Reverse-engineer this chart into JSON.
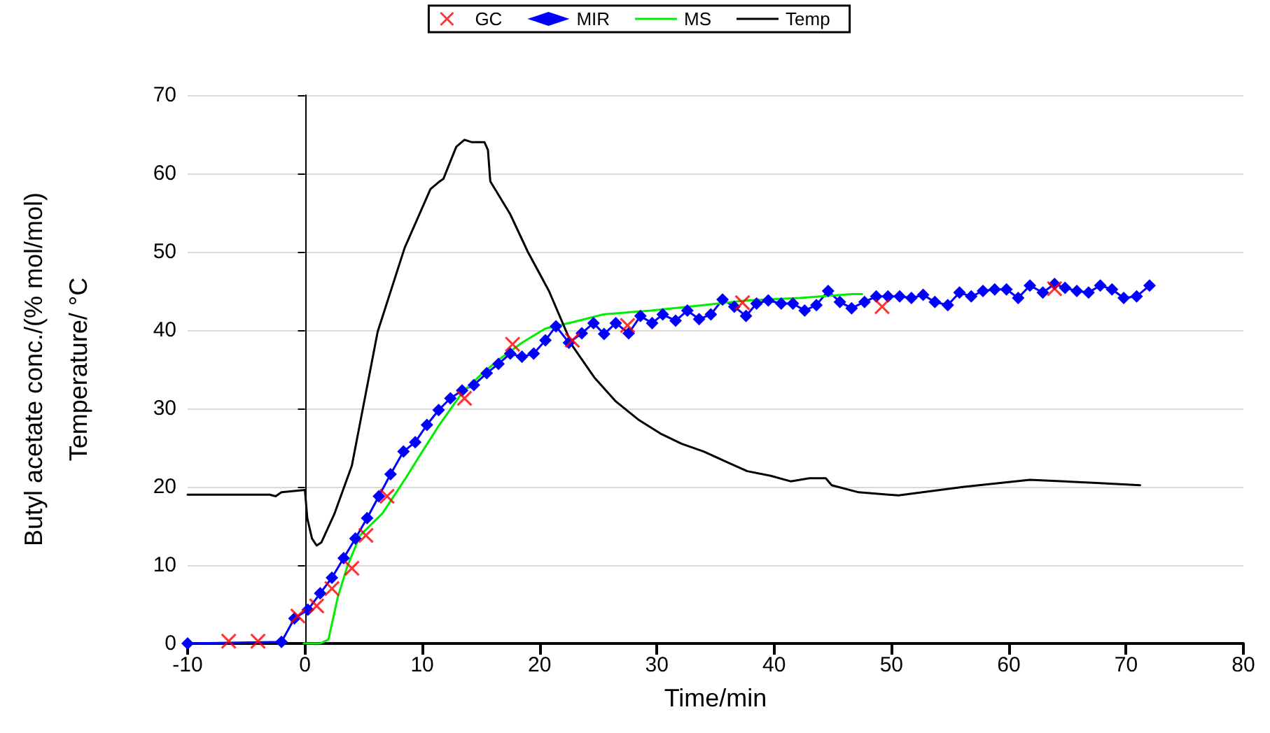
{
  "chart_data": {
    "type": "line",
    "xlabel": "Time/min",
    "ylabel": "Butyl acetate conc./(% mol/mol)\nTemperature/ °C",
    "xlim": [
      -10,
      80
    ],
    "xticks": [
      -10,
      0,
      10,
      20,
      30,
      40,
      50,
      60,
      70,
      80
    ],
    "ylim": [
      0,
      70
    ],
    "yticks": [
      0,
      10,
      20,
      30,
      40,
      50,
      60,
      70
    ],
    "grid": "y",
    "legend": "top",
    "series": [
      {
        "name": "GC",
        "type": "scatter",
        "marker": "cross",
        "color": "#ff0000",
        "x": [
          -6.5,
          -4,
          -0.6,
          1,
          2.3,
          4,
          5.2,
          7,
          13.6,
          17.7,
          22.8,
          27.5,
          37.3,
          49.2,
          63.9
        ],
        "values": [
          0.3,
          0.3,
          3.5,
          4.8,
          7,
          9.6,
          13.8,
          18.8,
          31.3,
          38.2,
          38.7,
          40.6,
          43.5,
          43,
          45.3
        ]
      },
      {
        "name": "MIR",
        "type": "line",
        "marker": "diamond",
        "color": "#0000ff",
        "x": [
          -10,
          -2,
          -0.9,
          0.25,
          1.3,
          2.3,
          3.3,
          4.3,
          5.3,
          6.3,
          7.3,
          8.4,
          9.4,
          10.4,
          11.4,
          12.4,
          13.4,
          14.4,
          15.5,
          16.5,
          17.5,
          18.5,
          19.5,
          20.5,
          21.4,
          22.5,
          23.6,
          24.6,
          25.5,
          26.5,
          27.6,
          28.6,
          29.6,
          30.5,
          31.6,
          32.6,
          33.6,
          34.6,
          35.6,
          36.6,
          37.6,
          38.5,
          39.5,
          40.6,
          41.6,
          42.6,
          43.6,
          44.6,
          45.6,
          46.6,
          47.7,
          48.7,
          49.7,
          50.7,
          51.7,
          52.7,
          53.7,
          54.8,
          55.8,
          56.8,
          57.8,
          58.8,
          59.8,
          60.8,
          61.8,
          62.9,
          63.9,
          64.8,
          65.8,
          66.8,
          67.8,
          68.8,
          69.8,
          70.9,
          72
        ],
        "values": [
          0,
          0.2,
          3.2,
          4.3,
          6.4,
          8.4,
          10.9,
          13.4,
          16,
          18.8,
          21.6,
          24.5,
          25.7,
          27.9,
          29.8,
          31.3,
          32.3,
          33,
          34.5,
          35.7,
          37,
          36.6,
          37,
          38.7,
          40.5,
          38.4,
          39.6,
          40.9,
          39.5,
          40.9,
          39.6,
          41.8,
          40.9,
          42,
          41.2,
          42.5,
          41.4,
          42,
          43.9,
          43,
          41.8,
          43.4,
          43.8,
          43.4,
          43.4,
          42.5,
          43.2,
          45,
          43.6,
          42.8,
          43.6,
          44.3,
          44.3,
          44.3,
          44.1,
          44.5,
          43.6,
          43.2,
          44.8,
          44.3,
          45,
          45.2,
          45.2,
          44.1,
          45.7,
          44.8,
          45.9,
          45.4,
          45,
          44.8,
          45.7,
          45.2,
          44.1,
          44.3,
          45.7
        ]
      },
      {
        "name": "MS",
        "type": "line",
        "marker": "none",
        "color": "#00ee00",
        "x": [
          -0.1,
          1.3,
          2.0,
          2.8,
          3.6,
          4.7,
          6.6,
          8.5,
          10,
          11.5,
          13.4,
          15,
          16.5,
          18.5,
          20.5,
          22.8,
          25.4,
          29.5,
          34,
          37.7,
          42.2,
          46.6,
          47.5
        ],
        "values": [
          0,
          0,
          0.5,
          5.9,
          9.8,
          13.8,
          16.6,
          20.9,
          24.5,
          28,
          32,
          34.3,
          36.2,
          38.4,
          40.2,
          41,
          42,
          42.5,
          43.2,
          43.8,
          44.1,
          44.6,
          44.6
        ]
      },
      {
        "name": "Temp",
        "type": "line",
        "marker": "none",
        "color": "#000000",
        "x": [
          -10,
          -3,
          -2.5,
          -2,
          0,
          0.2,
          0.6,
          1.0,
          1.4,
          2.5,
          4,
          6.2,
          8.5,
          10.7,
          11.5,
          11.8,
          12.9,
          13.6,
          14.2,
          15.3,
          15.6,
          15.8,
          17.5,
          19,
          20.8,
          22.8,
          24.7,
          26.5,
          28.4,
          30.3,
          32.1,
          34,
          35.9,
          37.7,
          39.7,
          41.4,
          43,
          44.4,
          44.9,
          47.2,
          50.6,
          56.2,
          61.8,
          67.5,
          71.2
        ],
        "values": [
          19,
          19,
          18.8,
          19.3,
          19.6,
          16,
          13.4,
          12.5,
          12.9,
          16.5,
          22.7,
          39.8,
          50.5,
          58,
          59,
          59.3,
          63.4,
          64.3,
          64,
          64,
          63,
          59,
          54.8,
          50,
          45,
          38,
          33.9,
          30.9,
          28.6,
          26.8,
          25.5,
          24.5,
          23.2,
          22,
          21.4,
          20.7,
          21.1,
          21.1,
          20.2,
          19.3,
          18.9,
          20,
          20.9,
          20.5,
          20.2
        ]
      }
    ]
  }
}
